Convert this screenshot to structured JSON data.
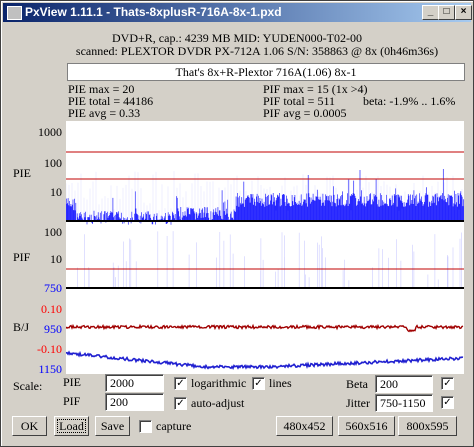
{
  "window": {
    "title": "PxView 1.11.1  -  Thats-8xplusR-716A-8x-1.pxd"
  },
  "header": {
    "disc": "DVD+R, cap.: 4239 MB MID: YUDEN000-T02-00",
    "scanned": "scanned: PLEXTOR DVDR PX-712A 1.06 S/N: 358863 @ 8x (0h46m36s)",
    "label": "That's 8x+R-Plextor 716A(1.06) 8x-1"
  },
  "stats": {
    "pie_max": "PIE max = 20",
    "pie_total": "PIE total = 44186",
    "pie_avg": "PIE avg = 0.33",
    "pif_max": "PIF max = 15 (1x >4)",
    "pif_total": "PIF total = 511",
    "pif_avg": "PIF avg = 0.0005",
    "beta": "beta: -1.9% .. 1.6%"
  },
  "charts": {
    "pie": {
      "label": "PIE",
      "ticks": [
        "1000",
        "100",
        "10"
      ]
    },
    "pif": {
      "label": "PIF",
      "ticks": [
        "100",
        "10"
      ]
    },
    "bj": {
      "label": "B/J",
      "jitter_ticks": [
        "750",
        "950",
        "1150"
      ],
      "beta_ticks": [
        "0.10",
        "-0.10"
      ]
    }
  },
  "scale": {
    "label": "Scale:",
    "pie": {
      "label": "PIE",
      "value": "2000"
    },
    "pif": {
      "label": "PIF",
      "value": "200"
    },
    "logarithmic": {
      "label": "logarithmic",
      "checked": true
    },
    "lines": {
      "label": "lines",
      "checked": true
    },
    "auto_adjust": {
      "label": "auto-adjust",
      "checked": true
    },
    "beta": {
      "label": "Beta",
      "value": "200",
      "checked": true
    },
    "jitter": {
      "label": "Jitter",
      "value": "750-1150",
      "checked": true
    }
  },
  "buttons": {
    "ok": "OK",
    "load": "Load",
    "save": "Save",
    "capture": {
      "label": "capture",
      "checked": false
    },
    "size1": "480x452",
    "size2": "560x516",
    "size3": "800x595"
  }
}
